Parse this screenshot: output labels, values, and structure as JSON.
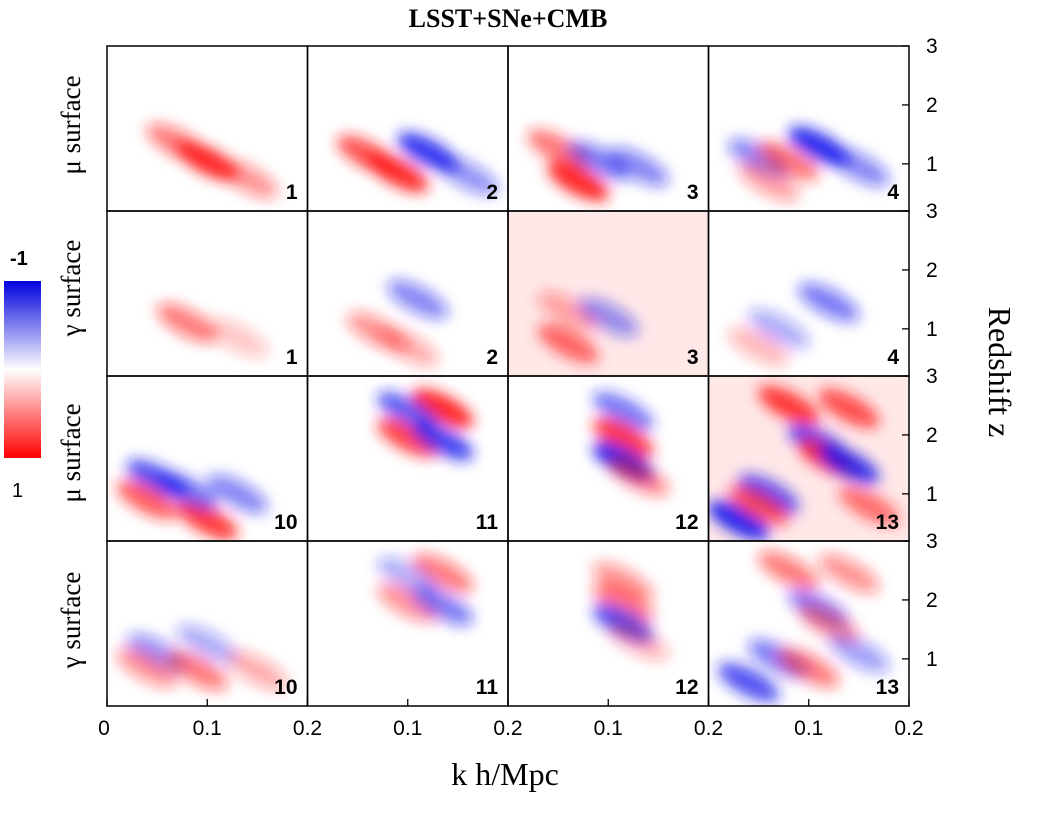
{
  "chart_data": {
    "type": "heatmap",
    "title": "LSST+SNe+CMB",
    "xlabel": "k h/Mpc",
    "ylabel_right": "Redshift z",
    "rows": [
      {
        "label": "μ surface",
        "panel_ids": [
          "1",
          "2",
          "3",
          "4"
        ]
      },
      {
        "label": "γ surface",
        "panel_ids": [
          "1",
          "2",
          "3",
          "4"
        ]
      },
      {
        "label": "μ surface",
        "panel_ids": [
          "10",
          "11",
          "12",
          "13"
        ]
      },
      {
        "label": "γ surface",
        "panel_ids": [
          "10",
          "11",
          "12",
          "13"
        ]
      }
    ],
    "x_ticks_first": [
      "0",
      "0.1",
      "0.2"
    ],
    "x_ticks_other": [
      "0.1",
      "0.2"
    ],
    "x_range": [
      0,
      0.2
    ],
    "y_ticks": [
      "3",
      "2",
      "1"
    ],
    "y_range": [
      0.2,
      3
    ],
    "colorbar": {
      "top_label": "-1",
      "bottom_label": "1",
      "range": [
        -1,
        1
      ],
      "negative_color": "#0000dd",
      "positive_color": "#ff0000"
    },
    "colors": {
      "blue": "#1a1aee",
      "red": "#ff1a1a"
    },
    "panels": [
      {
        "row": 0,
        "col": 0,
        "tint": 0,
        "blobs": [
          {
            "k": 0.1,
            "z": 1.05,
            "v": 0.95
          },
          {
            "k": 0.07,
            "z": 1.35,
            "v": 0.55
          },
          {
            "k": 0.14,
            "z": 0.75,
            "v": 0.45
          }
        ]
      },
      {
        "row": 0,
        "col": 1,
        "tint": 0,
        "blobs": [
          {
            "k": 0.06,
            "z": 1.15,
            "v": 0.75
          },
          {
            "k": 0.09,
            "z": 0.85,
            "v": 0.9
          },
          {
            "k": 0.12,
            "z": 1.2,
            "v": -0.85
          },
          {
            "k": 0.16,
            "z": 0.8,
            "v": -0.45
          }
        ]
      },
      {
        "row": 0,
        "col": 2,
        "tint": 0,
        "blobs": [
          {
            "k": 0.07,
            "z": 0.7,
            "v": 0.95
          },
          {
            "k": 0.05,
            "z": 1.25,
            "v": 0.6
          },
          {
            "k": 0.09,
            "z": 1.05,
            "v": -0.55
          },
          {
            "k": 0.13,
            "z": 0.95,
            "v": -0.5
          }
        ]
      },
      {
        "row": 0,
        "col": 3,
        "tint": 0,
        "blobs": [
          {
            "k": 0.11,
            "z": 1.3,
            "v": -0.9
          },
          {
            "k": 0.05,
            "z": 1.1,
            "v": -0.5
          },
          {
            "k": 0.08,
            "z": 1.05,
            "v": 0.6
          },
          {
            "k": 0.06,
            "z": 0.7,
            "v": 0.4
          },
          {
            "k": 0.15,
            "z": 0.95,
            "v": -0.5
          }
        ]
      },
      {
        "row": 1,
        "col": 0,
        "tint": 0,
        "blobs": [
          {
            "k": 0.08,
            "z": 1.1,
            "v": 0.55
          },
          {
            "k": 0.13,
            "z": 0.85,
            "v": 0.25
          }
        ]
      },
      {
        "row": 1,
        "col": 1,
        "tint": 0,
        "blobs": [
          {
            "k": 0.07,
            "z": 0.95,
            "v": 0.45
          },
          {
            "k": 0.1,
            "z": 0.7,
            "v": 0.35
          },
          {
            "k": 0.11,
            "z": 1.5,
            "v": -0.5
          }
        ]
      },
      {
        "row": 1,
        "col": 2,
        "tint": 0.1,
        "blobs": [
          {
            "k": 0.06,
            "z": 0.75,
            "v": 0.65
          },
          {
            "k": 0.06,
            "z": 1.3,
            "v": 0.35
          },
          {
            "k": 0.1,
            "z": 1.2,
            "v": -0.45
          }
        ]
      },
      {
        "row": 1,
        "col": 3,
        "tint": 0,
        "blobs": [
          {
            "k": 0.12,
            "z": 1.45,
            "v": -0.55
          },
          {
            "k": 0.07,
            "z": 1.0,
            "v": -0.35
          },
          {
            "k": 0.05,
            "z": 0.7,
            "v": 0.3
          }
        ]
      },
      {
        "row": 2,
        "col": 0,
        "tint": 0,
        "blobs": [
          {
            "k": 0.05,
            "z": 1.25,
            "v": -0.75
          },
          {
            "k": 0.04,
            "z": 0.9,
            "v": 0.7
          },
          {
            "k": 0.1,
            "z": 0.55,
            "v": 0.85
          },
          {
            "k": 0.08,
            "z": 1.05,
            "v": -0.6
          },
          {
            "k": 0.13,
            "z": 1.0,
            "v": -0.5
          }
        ]
      },
      {
        "row": 2,
        "col": 1,
        "tint": 0,
        "blobs": [
          {
            "k": 0.135,
            "z": 2.45,
            "v": 0.95
          },
          {
            "k": 0.1,
            "z": 2.4,
            "v": -0.7
          },
          {
            "k": 0.1,
            "z": 1.95,
            "v": 0.8
          },
          {
            "k": 0.135,
            "z": 1.9,
            "v": -0.8
          }
        ]
      },
      {
        "row": 2,
        "col": 2,
        "tint": 0,
        "blobs": [
          {
            "k": 0.115,
            "z": 2.4,
            "v": -0.6
          },
          {
            "k": 0.115,
            "z": 1.95,
            "v": 0.85
          },
          {
            "k": 0.115,
            "z": 1.55,
            "v": -0.95
          },
          {
            "k": 0.13,
            "z": 1.3,
            "v": 0.5
          }
        ]
      },
      {
        "row": 2,
        "col": 3,
        "tint": 0.1,
        "blobs": [
          {
            "k": 0.08,
            "z": 2.5,
            "v": 0.85
          },
          {
            "k": 0.14,
            "z": 2.45,
            "v": 0.75
          },
          {
            "k": 0.11,
            "z": 1.85,
            "v": -0.8
          },
          {
            "k": 0.12,
            "z": 1.6,
            "v": 0.85
          },
          {
            "k": 0.14,
            "z": 1.5,
            "v": -0.85
          },
          {
            "k": 0.03,
            "z": 0.55,
            "v": -0.95
          },
          {
            "k": 0.06,
            "z": 1.0,
            "v": -0.75
          },
          {
            "k": 0.05,
            "z": 0.8,
            "v": 0.7
          },
          {
            "k": 0.16,
            "z": 0.8,
            "v": 0.6
          }
        ]
      },
      {
        "row": 3,
        "col": 0,
        "tint": 0,
        "blobs": [
          {
            "k": 0.05,
            "z": 1.1,
            "v": -0.45
          },
          {
            "k": 0.04,
            "z": 0.85,
            "v": 0.45
          },
          {
            "k": 0.09,
            "z": 0.8,
            "v": 0.55
          },
          {
            "k": 0.1,
            "z": 1.25,
            "v": -0.35
          },
          {
            "k": 0.15,
            "z": 0.8,
            "v": 0.35
          }
        ]
      },
      {
        "row": 3,
        "col": 1,
        "tint": 0,
        "blobs": [
          {
            "k": 0.135,
            "z": 2.45,
            "v": 0.55
          },
          {
            "k": 0.1,
            "z": 2.4,
            "v": -0.35
          },
          {
            "k": 0.1,
            "z": 1.95,
            "v": 0.45
          },
          {
            "k": 0.135,
            "z": 1.9,
            "v": -0.55
          }
        ]
      },
      {
        "row": 3,
        "col": 2,
        "tint": 0,
        "blobs": [
          {
            "k": 0.115,
            "z": 2.3,
            "v": 0.45
          },
          {
            "k": 0.115,
            "z": 1.95,
            "v": 0.55
          },
          {
            "k": 0.115,
            "z": 1.6,
            "v": -0.75
          },
          {
            "k": 0.13,
            "z": 1.3,
            "v": 0.3
          }
        ]
      },
      {
        "row": 3,
        "col": 3,
        "tint": 0,
        "blobs": [
          {
            "k": 0.08,
            "z": 2.5,
            "v": 0.55
          },
          {
            "k": 0.14,
            "z": 2.45,
            "v": 0.45
          },
          {
            "k": 0.11,
            "z": 1.85,
            "v": -0.55
          },
          {
            "k": 0.12,
            "z": 1.6,
            "v": 0.45
          },
          {
            "k": 0.04,
            "z": 0.6,
            "v": -0.75
          },
          {
            "k": 0.07,
            "z": 1.0,
            "v": -0.55
          },
          {
            "k": 0.1,
            "z": 0.85,
            "v": 0.55
          },
          {
            "k": 0.15,
            "z": 1.1,
            "v": -0.4
          }
        ]
      }
    ]
  }
}
